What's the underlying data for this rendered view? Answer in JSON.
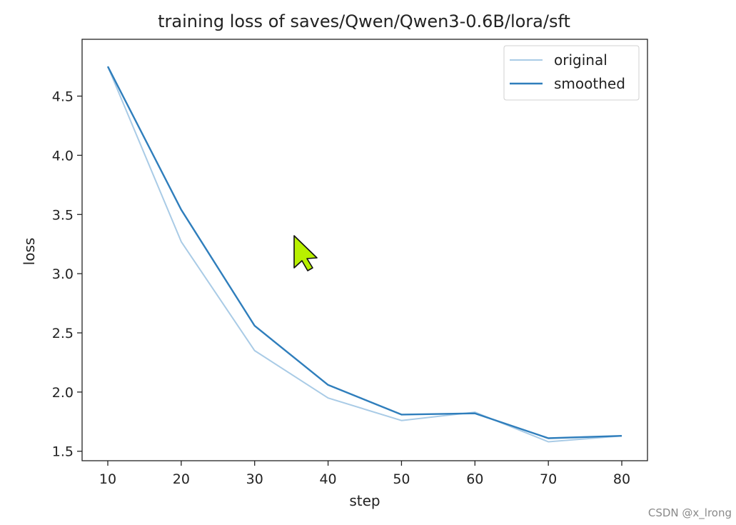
{
  "chart_data": {
    "type": "line",
    "title": "training loss of saves/Qwen/Qwen3-0.6B/lora/sft",
    "xlabel": "step",
    "ylabel": "loss",
    "xlim": [
      6.5,
      83.5
    ],
    "ylim": [
      1.42,
      4.98
    ],
    "xticks": [
      10,
      20,
      30,
      40,
      50,
      60,
      70,
      80
    ],
    "yticks": [
      1.5,
      2.0,
      2.5,
      3.0,
      3.5,
      4.0,
      4.5
    ],
    "x": [
      10,
      20,
      30,
      40,
      50,
      60,
      70,
      80
    ],
    "series": [
      {
        "name": "original",
        "color": "#a9cbe6",
        "values": [
          4.75,
          3.27,
          2.35,
          1.95,
          1.76,
          1.83,
          1.58,
          1.63
        ]
      },
      {
        "name": "smoothed",
        "color": "#2f7ebc",
        "values": [
          4.75,
          3.54,
          2.56,
          2.06,
          1.81,
          1.82,
          1.61,
          1.63
        ]
      }
    ],
    "legend": "top-right",
    "grid": false
  },
  "cursor": {
    "icon": "mouse-pointer-icon",
    "color": "#b8f000"
  },
  "watermark": "CSDN @x_lrong"
}
